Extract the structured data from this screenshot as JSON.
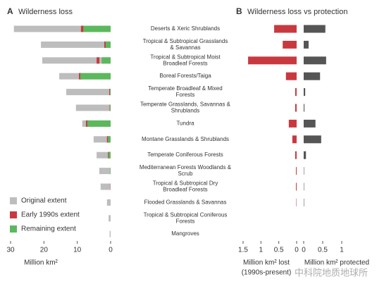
{
  "chart_data": [
    {
      "type": "hbar-overlay",
      "panel": "A",
      "title": "Wilderness loss",
      "categories": [
        "Deserts & Xeric Shrublands",
        "Tropical & Subtropical Grasslands & Savannas",
        "Tropical & Subtropical Moist Broadleaf Forests",
        "Boreal Forests/Taiga",
        "Temperate Broadleaf & Mixed Forests",
        "Temperate Grasslands, Savannas & Shrublands",
        "Tundra",
        "Montane Grasslands & Shrublands",
        "Temperate Coniferous Forests",
        "Mediterranean Forests Woodlands & Scrub",
        "Tropical & Subtropical  Dry Broadleaf Forests",
        "Flooded Grasslands & Savannas",
        "Tropical & Subtropical Coniferous Forests",
        "Mangroves"
      ],
      "series": [
        {
          "name": "Original extent",
          "color": "#bdbdbd",
          "values": [
            29,
            20.9,
            20.5,
            15.4,
            13.3,
            10.4,
            8.5,
            5.1,
            4.2,
            3.4,
            3.0,
            1.1,
            0.6,
            0.3
          ]
        },
        {
          "name": "Early 1990s extent",
          "color": "#c8393f",
          "values": [
            8.9,
            1.9,
            4.2,
            9.5,
            0.4,
            0.3,
            7.4,
            1.1,
            0.8,
            0.1,
            0.05,
            0,
            0,
            0
          ]
        },
        {
          "name": "Remaining extent",
          "color": "#5cb85c",
          "values": [
            8.2,
            1.5,
            2.7,
            9.1,
            0.2,
            0.2,
            7.0,
            0.8,
            0.6,
            0.1,
            0,
            0,
            0,
            0
          ]
        }
      ],
      "xlim": [
        30,
        0
      ],
      "xticks": [
        30,
        20,
        10,
        0
      ],
      "x_label": "Million km²",
      "legend": "bottom-left"
    },
    {
      "type": "hbar-split",
      "panel": "B",
      "title": "Wilderness loss vs protection",
      "series": [
        {
          "color": "#c8393f",
          "values": [
            0.63,
            0.39,
            1.36,
            0.3,
            0.04,
            0.04,
            0.22,
            0.12,
            0.04,
            0.02,
            0.02,
            0.01,
            0,
            0
          ],
          "xlim": [
            1.5,
            0
          ],
          "xticks": [
            1.5,
            1,
            0.5,
            0
          ],
          "x_label": [
            "Million km² lost",
            "(1990s-present)"
          ]
        },
        {
          "color": "#555555",
          "values": [
            0.57,
            0.13,
            0.59,
            0.43,
            0.04,
            0.02,
            0.31,
            0.46,
            0.06,
            0.01,
            0.01,
            0.01,
            0,
            0
          ],
          "xlim": [
            0,
            1
          ],
          "xticks": [
            0,
            0.5,
            1
          ],
          "x_label": [
            "Million km² protected"
          ]
        }
      ]
    },
    {
      "type": "watermark",
      "text": "中科院地质地球所"
    }
  ]
}
